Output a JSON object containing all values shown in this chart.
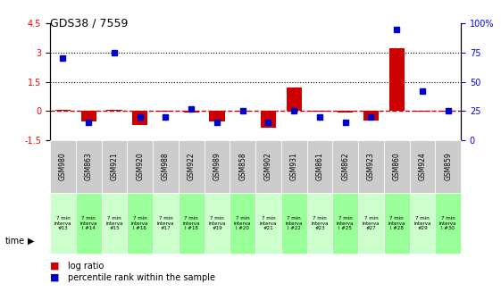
{
  "title": "GDS38 / 7559",
  "samples": [
    "GSM980",
    "GSM863",
    "GSM921",
    "GSM920",
    "GSM988",
    "GSM922",
    "GSM989",
    "GSM858",
    "GSM902",
    "GSM931",
    "GSM861",
    "GSM862",
    "GSM923",
    "GSM860",
    "GSM924",
    "GSM859"
  ],
  "time_labels": [
    "7 min\ninterva\n#13",
    "7 min\ninterva\nl #14",
    "7 min\ninterva\n#15",
    "7 min\ninterva\nl #16",
    "7 min\ninterva\n#17",
    "7 min\ninterva\nl #18",
    "7 min\ninterva\n#19",
    "7 min\ninterva\nl #20",
    "7 min\ninterva\n#21",
    "7 min\ninterva\nl #22",
    "7 min\ninterva\n#23",
    "7 min\ninterva\nl #25",
    "7 min\ninterva\n#27",
    "7 min\ninterva\nl #28",
    "7 min\ninterva\n#29",
    "7 min\ninterva\nl #30"
  ],
  "log_ratio": [
    0.05,
    -0.55,
    0.05,
    -0.7,
    -0.05,
    -0.1,
    -0.55,
    -0.05,
    -0.85,
    1.2,
    -0.05,
    -0.1,
    -0.5,
    3.2,
    -0.05,
    -0.05
  ],
  "percentile": [
    70,
    15,
    75,
    20,
    20,
    27,
    15,
    25,
    15,
    25,
    20,
    15,
    20,
    95,
    42,
    25
  ],
  "ylim_left": [
    -1.5,
    4.5
  ],
  "ylim_right": [
    0,
    100
  ],
  "yticks_left": [
    -1.5,
    0,
    1.5,
    3,
    4.5
  ],
  "yticks_right": [
    0,
    25,
    50,
    75,
    100
  ],
  "ytick_labels_right": [
    "0",
    "25",
    "50",
    "75",
    "100%"
  ],
  "bar_color": "#cc0000",
  "dot_color": "#0000cc",
  "bg_color_sample": "#cccccc",
  "bg_color_time_odd": "#ccffcc",
  "bg_color_time_even": "#99ff99",
  "hline_color": "#cc0000",
  "dotted_line_color": "#000000",
  "bar_width": 0.6
}
